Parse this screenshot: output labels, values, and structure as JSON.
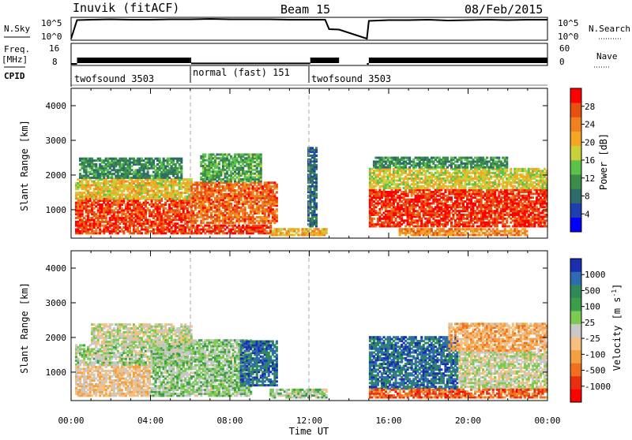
{
  "header": {
    "station": "Inuvik (fitACF)",
    "beam": "Beam 15",
    "date": "08/Feb/2015"
  },
  "nsky_panel": {
    "left_label": "N.Sky",
    "left_ticks": [
      "10^5",
      "10^0"
    ],
    "right_ticks": [
      "10^5",
      "10^0"
    ],
    "right_label": "N.Search",
    "right_legend_style": "dotted"
  },
  "freq_panel": {
    "left_label_top": "Freq.",
    "left_label_unit": "[MHz]",
    "left_ticks": [
      "16",
      "8"
    ],
    "right_ticks": [
      "60",
      "0"
    ],
    "right_label": "Nave",
    "right_legend_style": "dotted"
  },
  "cpid": {
    "label": "CPID",
    "segments": [
      {
        "name": "twofsound 3503",
        "start_h": 0,
        "end_h": 6
      },
      {
        "name": "normal (fast) 151",
        "start_h": 6,
        "end_h": 12
      },
      {
        "name": "twofsound 3503",
        "start_h": 12,
        "end_h": 24
      }
    ]
  },
  "x_axis": {
    "label": "Time UT",
    "ticks": [
      "00:00",
      "04:00",
      "08:00",
      "12:00",
      "16:00",
      "20:00",
      "00:00"
    ],
    "range_hours": [
      0,
      24
    ]
  },
  "power_colorbar": {
    "label": "Power [dB]",
    "ticks": [
      "28",
      "24",
      "20",
      "16",
      "12",
      "8",
      "4"
    ],
    "colors": [
      "#0000ff",
      "#1e3fb0",
      "#2e6b6b",
      "#3c8d4a",
      "#5dc24a",
      "#c8d03a",
      "#f5a623",
      "#f08020",
      "#e85010",
      "#ff0000"
    ]
  },
  "velocity_colorbar": {
    "label": "Velocity [m s",
    "label_sup": "-1",
    "label_close": "]",
    "ticks": [
      "1000",
      "500",
      "100",
      "25",
      "-25",
      "-100",
      "-500",
      "-1000"
    ],
    "colors": [
      "#1a2fb0",
      "#2e6bb0",
      "#2e8b57",
      "#3c9d4a",
      "#7acb50",
      "#c8c8c8",
      "#f5c080",
      "#f5a040",
      "#f07020",
      "#e83010",
      "#ff0000"
    ]
  },
  "chart_data": [
    {
      "type": "line",
      "title": "N.Sky / N.Search",
      "x_hours": [
        0,
        0.3,
        1,
        2,
        3,
        4,
        5,
        6,
        7,
        8,
        9,
        10,
        11,
        12,
        12.8,
        13,
        13.5,
        14.9,
        15,
        16,
        17,
        18,
        19,
        20,
        21,
        22,
        23,
        24
      ],
      "log10_nsky": [
        0,
        4.7,
        4.8,
        4.9,
        4.8,
        4.8,
        4.9,
        4.9,
        5.0,
        4.9,
        4.9,
        4.9,
        4.8,
        4.8,
        4.8,
        2.4,
        2.3,
        0,
        4.5,
        4.7,
        4.7,
        4.8,
        4.6,
        4.7,
        4.8,
        4.7,
        4.8,
        4.8
      ],
      "ylim": [
        0,
        5
      ]
    },
    {
      "type": "line",
      "title": "Freq. / Nave",
      "x_hours": [
        0,
        0.3,
        6,
        6.05,
        12,
        12.05,
        13.5,
        14.9,
        15,
        24
      ],
      "freq_mhz": [
        8,
        9.5,
        9.5,
        8.2,
        8.2,
        9.5,
        9.5,
        8,
        9.5,
        9.5
      ],
      "ylim": [
        8,
        16
      ]
    },
    {
      "type": "heatmap",
      "title": "Power [dB]",
      "ylabel": "Slant Range [km]",
      "xlabel": "Time UT",
      "ylim": [
        180,
        4500
      ],
      "ytick_values": [
        1000,
        2000,
        3000,
        4000
      ],
      "colorbar_range": [
        0,
        30
      ],
      "blobs": [
        {
          "t0": 0.2,
          "t1": 6.0,
          "r0": 300,
          "r1": 1300,
          "v": 26
        },
        {
          "t0": 0.2,
          "t1": 6.0,
          "r0": 1300,
          "r1": 1900,
          "v": 18
        },
        {
          "t0": 0.4,
          "t1": 5.5,
          "r0": 1900,
          "r1": 2500,
          "v": 10
        },
        {
          "t0": 6.0,
          "t1": 10.3,
          "r0": 600,
          "r1": 1800,
          "v": 24
        },
        {
          "t0": 6.0,
          "t1": 10.0,
          "r0": 300,
          "r1": 550,
          "v": 27
        },
        {
          "t0": 6.5,
          "t1": 9.5,
          "r0": 1800,
          "r1": 2600,
          "v": 12
        },
        {
          "t0": 10.0,
          "t1": 12.8,
          "r0": 250,
          "r1": 450,
          "v": 20
        },
        {
          "t0": 11.9,
          "t1": 12.3,
          "r0": 500,
          "r1": 2800,
          "v": 7
        },
        {
          "t0": 15.0,
          "t1": 24.0,
          "r0": 500,
          "r1": 1600,
          "v": 27
        },
        {
          "t0": 15.0,
          "t1": 24.0,
          "r0": 1600,
          "r1": 2200,
          "v": 17
        },
        {
          "t0": 15.2,
          "t1": 22.0,
          "r0": 2200,
          "r1": 2500,
          "v": 10
        },
        {
          "t0": 16.5,
          "t1": 23.0,
          "r0": 250,
          "r1": 450,
          "v": 22
        }
      ]
    },
    {
      "type": "heatmap",
      "title": "Velocity [m s-1]",
      "ylabel": "Slant Range [km]",
      "xlabel": "Time UT",
      "ylim": [
        180,
        4500
      ],
      "ytick_values": [
        1000,
        2000,
        3000,
        4000
      ],
      "colorbar_range": [
        -1000,
        1000
      ],
      "blobs": [
        {
          "t0": 0.2,
          "t1": 4.0,
          "r0": 300,
          "r1": 1200,
          "v": -180
        },
        {
          "t0": 0.2,
          "t1": 6.0,
          "r0": 1200,
          "r1": 1800,
          "v": 80
        },
        {
          "t0": 4.0,
          "t1": 9.0,
          "r0": 300,
          "r1": 1900,
          "v": 150
        },
        {
          "t0": 1.0,
          "t1": 6.0,
          "r0": 1800,
          "r1": 2400,
          "v": 5
        },
        {
          "t0": 8.5,
          "t1": 10.3,
          "r0": 600,
          "r1": 1900,
          "v": 700
        },
        {
          "t0": 10.0,
          "t1": 12.8,
          "r0": 250,
          "r1": 500,
          "v": 120
        },
        {
          "t0": 15.0,
          "t1": 19.5,
          "r0": 500,
          "r1": 2000,
          "v": 700
        },
        {
          "t0": 19.5,
          "t1": 24.0,
          "r0": 500,
          "r1": 1600,
          "v": 5
        },
        {
          "t0": 19.0,
          "t1": 24.0,
          "r0": 1600,
          "r1": 2400,
          "v": -300
        },
        {
          "t0": 15.0,
          "t1": 24.0,
          "r0": 250,
          "r1": 500,
          "v": -600
        }
      ]
    }
  ]
}
